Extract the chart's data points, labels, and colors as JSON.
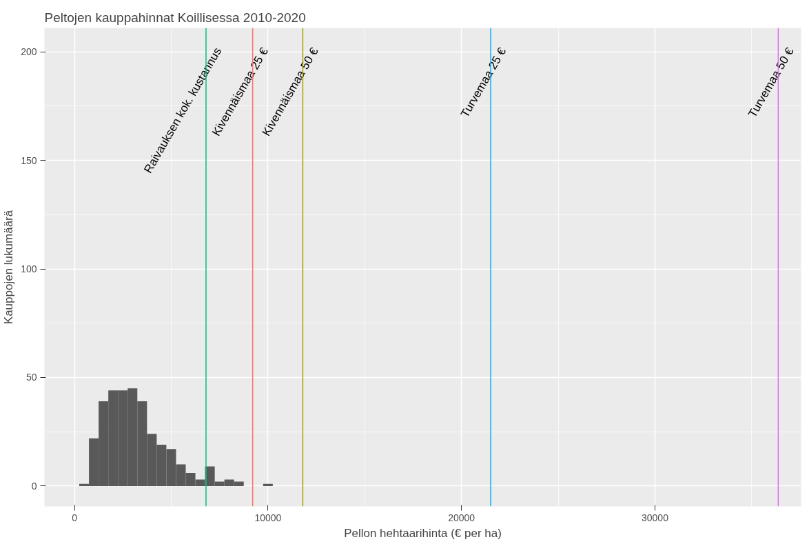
{
  "chart_data": {
    "type": "histogram",
    "title": "Peltojen kauppahinnat Koillisessa 2010-2020",
    "xlabel": "Pellon hehtaarihinta (€ per ha)",
    "ylabel": "Kauppojen lukumäärä",
    "bins": [
      250,
      750,
      1250,
      1750,
      2250,
      2750,
      3250,
      3750,
      4250,
      4750,
      5250,
      5750,
      6250,
      6750,
      7250,
      7750,
      8250,
      8750,
      9250,
      9750,
      10250
    ],
    "values": [
      1,
      22,
      39,
      44,
      44,
      45,
      39,
      24,
      19,
      17,
      10,
      6,
      3,
      9,
      2,
      3,
      2,
      0,
      0,
      1
    ],
    "color": "#595959",
    "xlim": [
      -1550,
      37550
    ],
    "ylim": [
      -9.4,
      211
    ],
    "xticks": [
      0,
      10000,
      20000,
      30000
    ],
    "yticks": [
      0,
      50,
      100,
      150,
      200
    ],
    "grid": true,
    "ref_lines": [
      {
        "axis": "x",
        "value": 6800,
        "label": "Raivauksen kok. kustannus",
        "color": "#00BF7D"
      },
      {
        "axis": "x",
        "value": 9210,
        "label": "Kivennäismaa 25 €",
        "color": "#F8766D"
      },
      {
        "axis": "x",
        "value": 11800,
        "label": "Kivennäismaa 50 €",
        "color": "#A3A500"
      },
      {
        "axis": "x",
        "value": 21510,
        "label": "Turvemaa 25 €",
        "color": "#00B0F6"
      },
      {
        "axis": "x",
        "value": 36370,
        "label": "Turvemaa 50 €",
        "color": "#E76BF3"
      }
    ]
  }
}
